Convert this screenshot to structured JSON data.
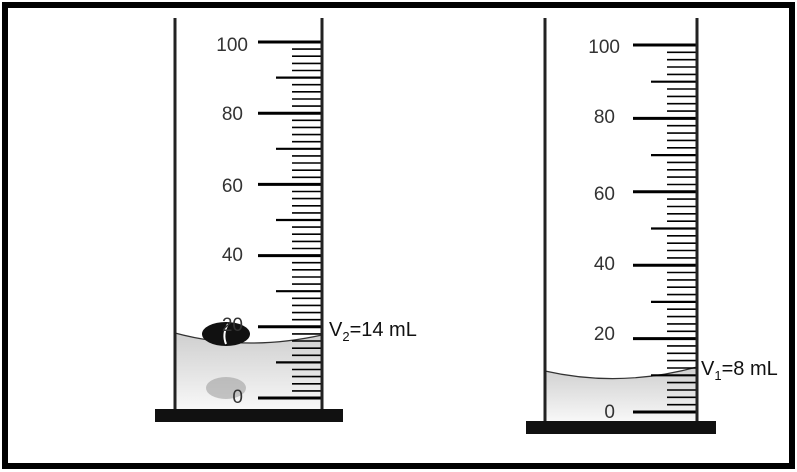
{
  "cylinders": [
    {
      "id": "left",
      "scale_labels": [
        "100",
        "80",
        "60",
        "40",
        "20",
        "0"
      ],
      "reading": {
        "prefix": "V",
        "subscript": "2",
        "suffix": "=14 mL"
      },
      "contains_object": true
    },
    {
      "id": "right",
      "scale_labels": [
        "100",
        "80",
        "60",
        "40",
        "20",
        "0"
      ],
      "reading": {
        "prefix": "V",
        "subscript": "1",
        "suffix": "=8 mL"
      },
      "contains_object": false
    }
  ],
  "colors": {
    "frame": "#000000",
    "tube": "#222222",
    "tick": "#000000",
    "label": "#333333",
    "liquid_top": "#d4d4d4",
    "liquid_bottom": "#fafafa",
    "object": "#111111"
  }
}
